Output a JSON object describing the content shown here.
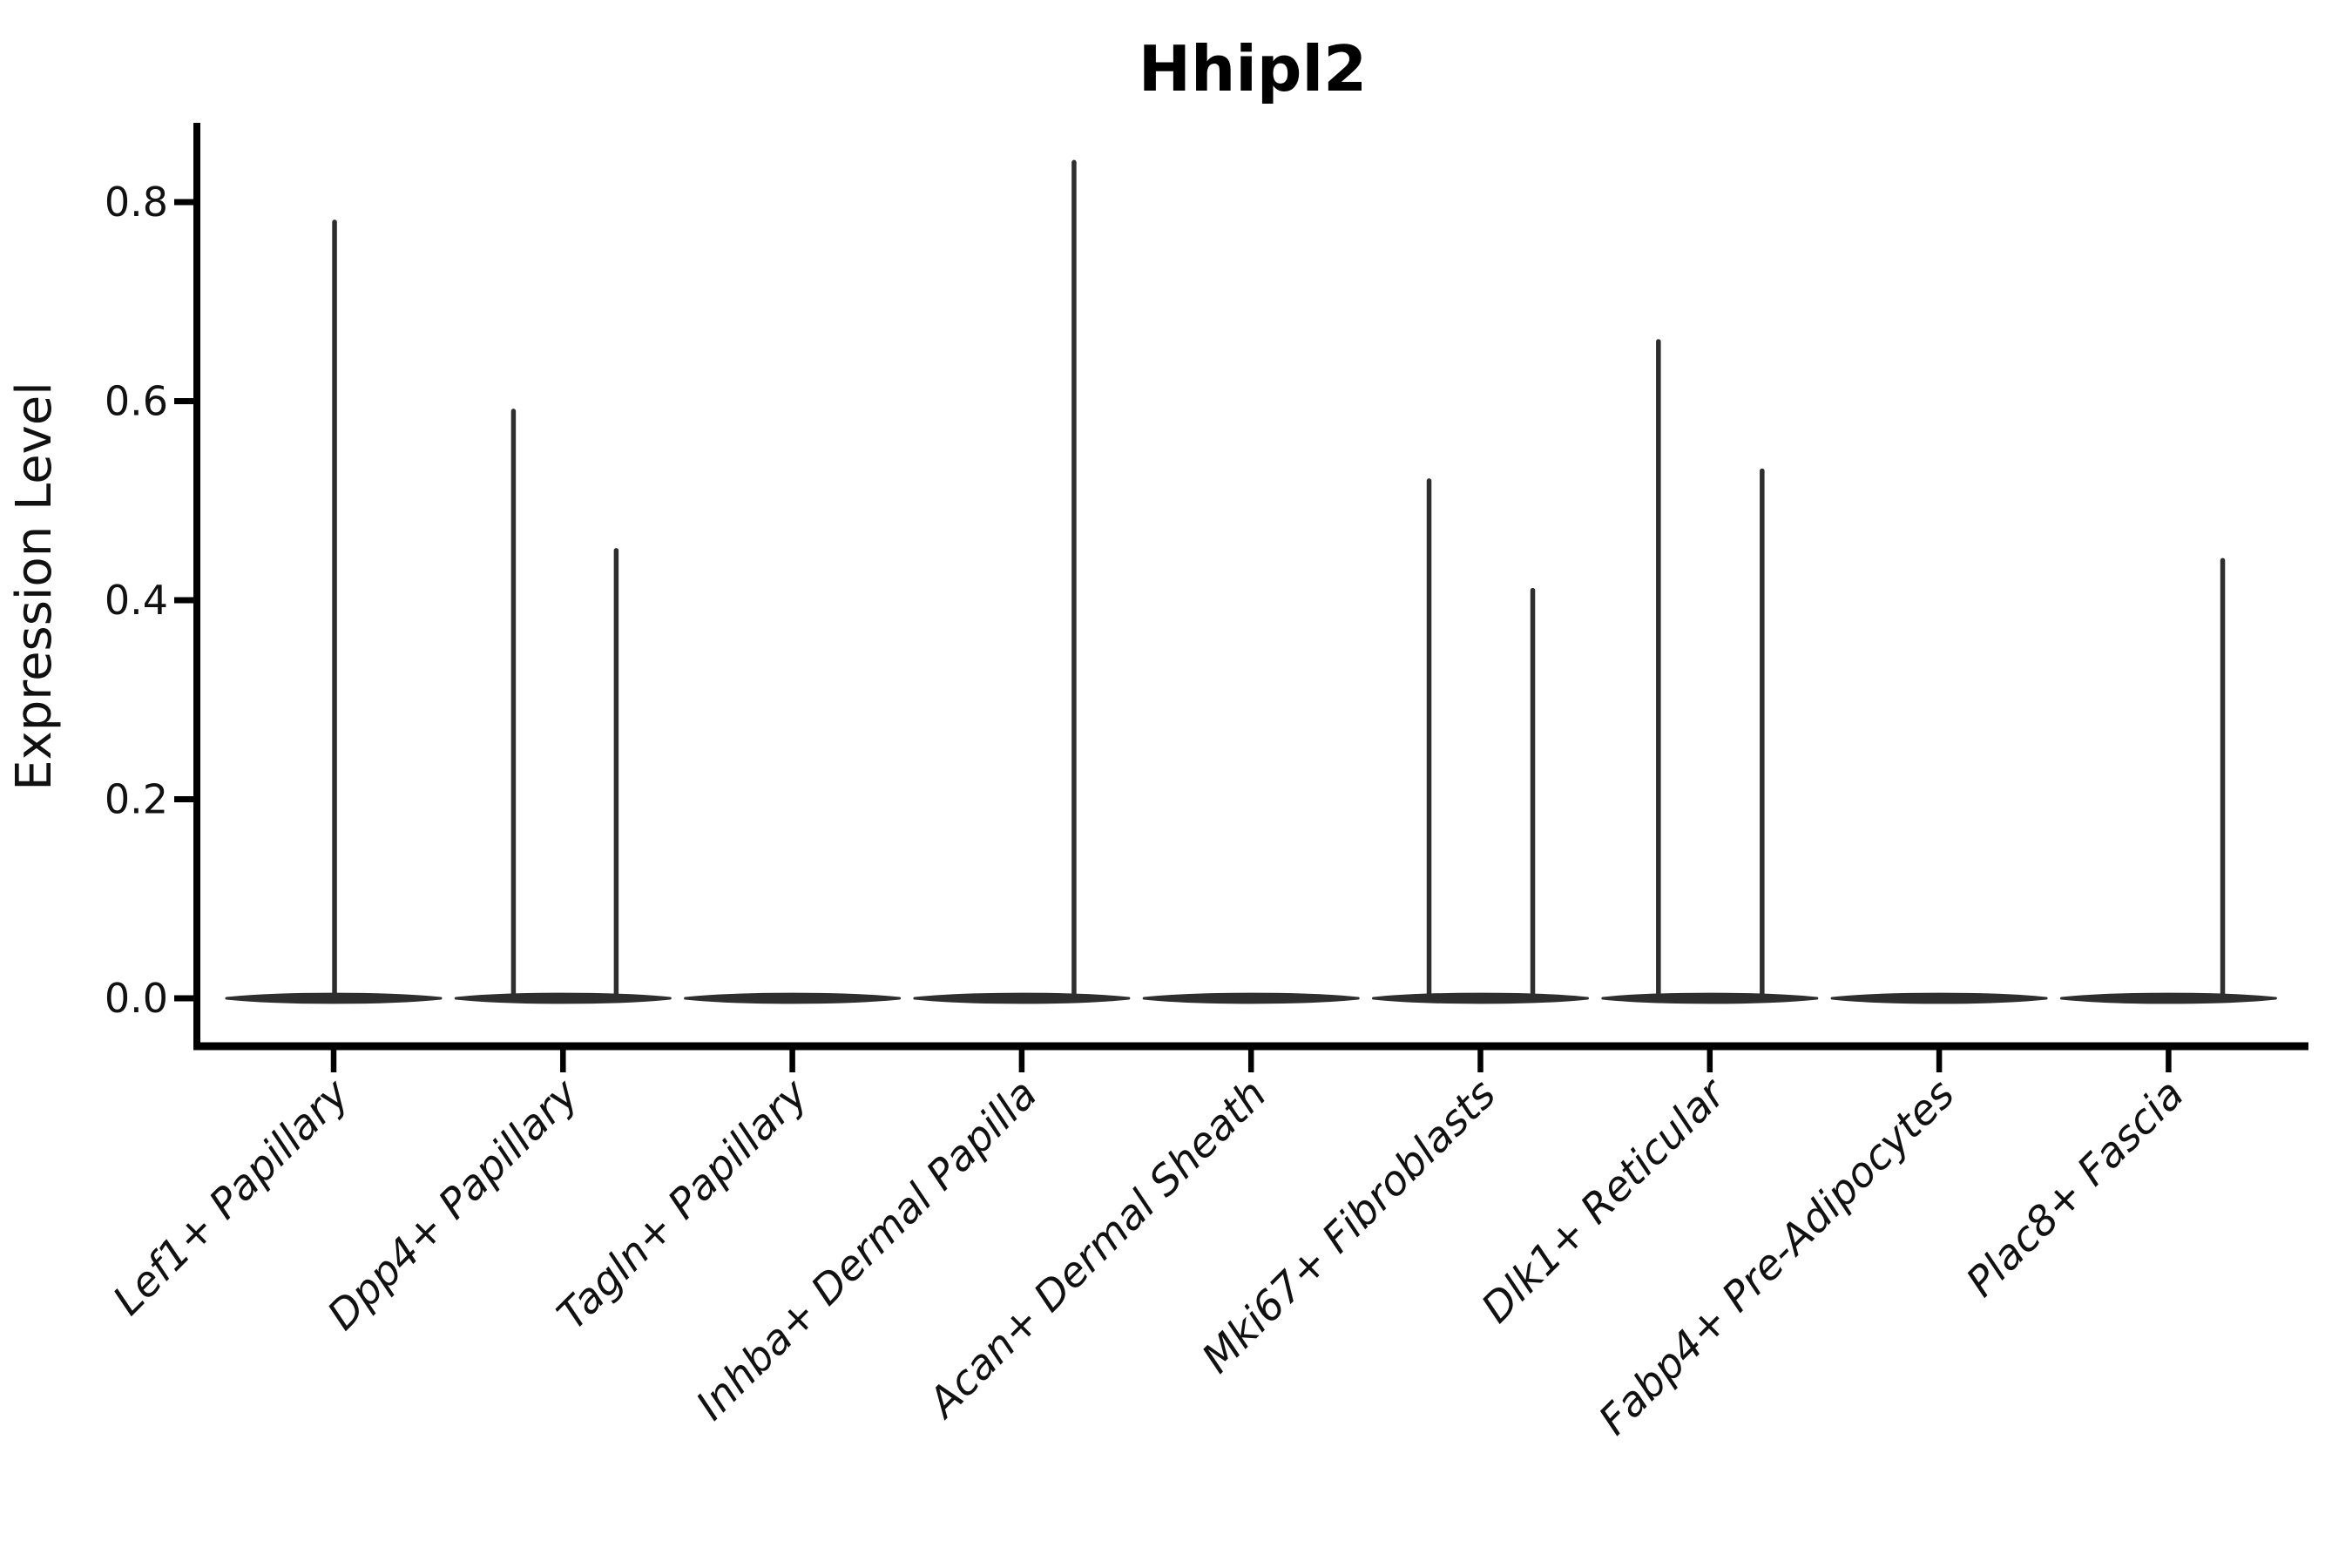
{
  "title": "Hhipl2",
  "colors": {
    "background": "#ffffff",
    "axis": "#000000",
    "text": "#111111",
    "violin": "#2e2e2e"
  },
  "chart_data": {
    "type": "violin",
    "title": "Hhipl2",
    "xlabel": "",
    "ylabel": "Expression Level",
    "ylim": [
      -0.05,
      0.88
    ],
    "yticks": [
      0.0,
      0.2,
      0.4,
      0.6,
      0.8
    ],
    "grid": false,
    "legend": "none",
    "x_tick_rotation_deg": 45,
    "categories": [
      "Lef1+ Papillary",
      "Dpp4+ Papillary",
      "Tagln+ Papillary",
      "Inhba+ Dermal Papilla",
      "Acan+ Dermal Sheath",
      "Mki67+ Fibroblasts",
      "Dlk1+ Reticular",
      "Fabp4+ Pre-Adipocytes",
      "Plac8+ Fascia"
    ],
    "violins": [
      {
        "category": "Lef1+ Papillary",
        "baseline_value": 0.0,
        "spikes": [
          {
            "offset": 0.004,
            "value": 0.78
          }
        ]
      },
      {
        "category": "Dpp4+ Papillary",
        "baseline_value": 0.0,
        "spikes": [
          {
            "offset": -0.216,
            "value": 0.59
          },
          {
            "offset": 0.232,
            "value": 0.45
          }
        ]
      },
      {
        "category": "Tagln+ Papillary",
        "baseline_value": 0.0,
        "spikes": []
      },
      {
        "category": "Inhba+ Dermal Papilla",
        "baseline_value": 0.0,
        "spikes": [
          {
            "offset": 0.228,
            "value": 0.84
          }
        ]
      },
      {
        "category": "Acan+ Dermal Sheath",
        "baseline_value": 0.0,
        "spikes": []
      },
      {
        "category": "Mki67+ Fibroblasts",
        "baseline_value": 0.0,
        "spikes": [
          {
            "offset": -0.224,
            "value": 0.52
          },
          {
            "offset": 0.228,
            "value": 0.41
          }
        ]
      },
      {
        "category": "Dlk1+ Reticular",
        "baseline_value": 0.0,
        "spikes": [
          {
            "offset": -0.224,
            "value": 0.66
          },
          {
            "offset": 0.228,
            "value": 0.53
          }
        ]
      },
      {
        "category": "Fabp4+ Pre-Adipocytes",
        "baseline_value": 0.0,
        "spikes": []
      },
      {
        "category": "Plac8+ Fascia",
        "baseline_value": 0.0,
        "spikes": [
          {
            "offset": 0.236,
            "value": 0.44
          }
        ]
      }
    ]
  }
}
